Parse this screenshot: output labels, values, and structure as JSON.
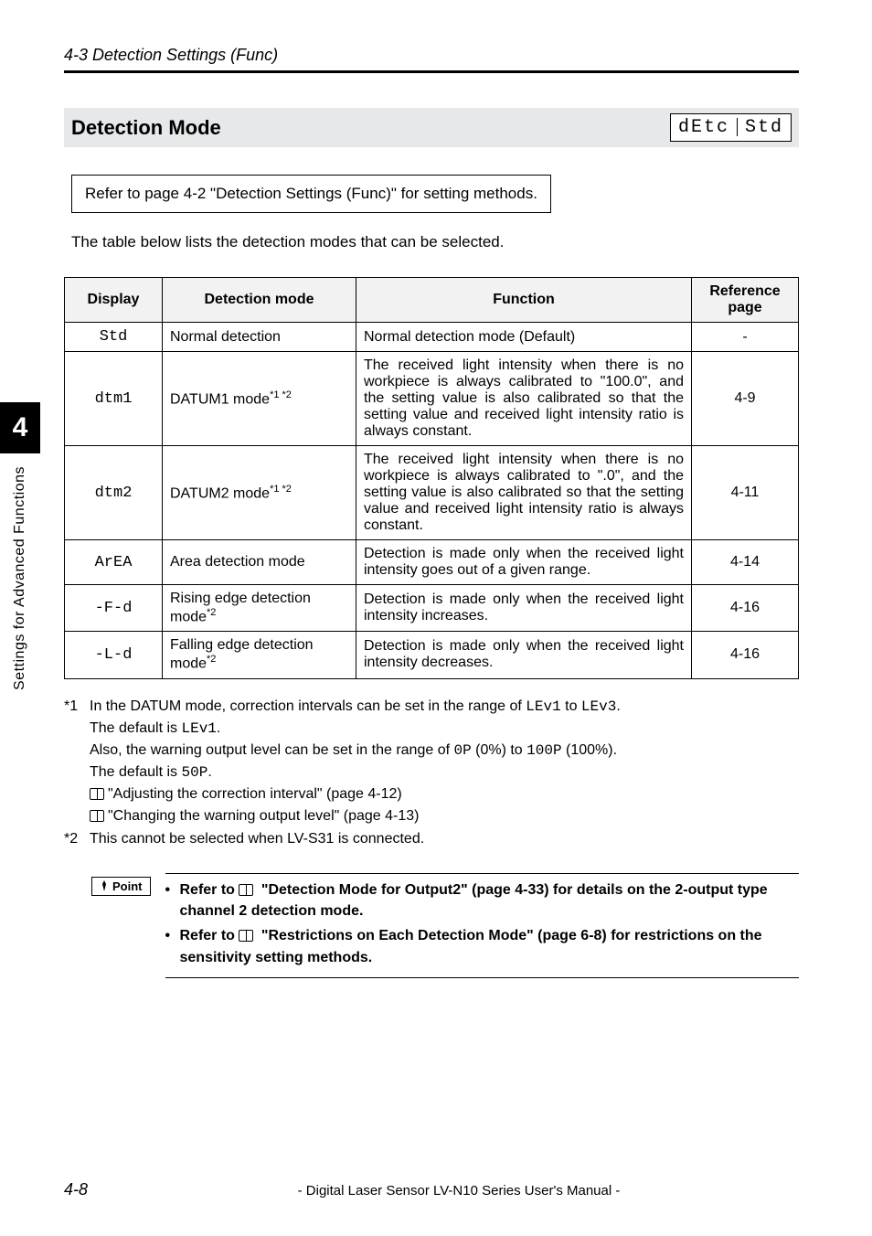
{
  "header": {
    "section": "4-3  Detection Settings (Func)"
  },
  "title": {
    "text": "Detection Mode",
    "seg_left": "dEtc",
    "seg_right": "Std"
  },
  "ref_box": "Refer to page 4-2 \"Detection Settings (Func)\" for setting methods.",
  "intro": "The table below lists the detection modes that can be selected.",
  "table": {
    "headers": {
      "display": "Display",
      "mode": "Detection mode",
      "func": "Function",
      "ref": "Reference page"
    },
    "rows": [
      {
        "display": "Std",
        "mode": "Normal detection",
        "mode_sup": "",
        "func": "Normal detection mode (Default)",
        "ref": "-"
      },
      {
        "display": "dtm1",
        "mode": "DATUM1 mode",
        "mode_sup": "*1 *2",
        "func": "The received light intensity when there is no workpiece is always calibrated to \"100.0\", and the setting value is also calibrated so that the setting value and received light intensity ratio is always constant.",
        "ref": "4-9"
      },
      {
        "display": "dtm2",
        "mode": "DATUM2 mode",
        "mode_sup": "*1 *2",
        "func": "The received light intensity when there is no workpiece is always calibrated to \".0\", and the setting value is also calibrated so that the setting value and received light intensity ratio is always constant.",
        "ref": "4-11"
      },
      {
        "display": "ArEA",
        "mode": "Area detection mode",
        "mode_sup": "",
        "func": "Detection is made only when the received light intensity goes out of a given range.",
        "ref": "4-14"
      },
      {
        "display": "-F-d",
        "mode": "Rising edge detection mode",
        "mode_sup": "*2",
        "func": "Detection is made only when the received light intensity increases.",
        "ref": "4-16"
      },
      {
        "display": "-L-d",
        "mode": "Falling edge detection mode",
        "mode_sup": "*2",
        "func": "Detection is made only when the received light intensity decreases.",
        "ref": "4-16"
      }
    ]
  },
  "footnotes": {
    "f1a": "In the DATUM mode, correction intervals can be set in the range of ",
    "f1a_code1": "LEv1",
    "f1a_mid": " to ",
    "f1a_code2": "LEv3",
    "f1a_end": ".",
    "f1b": "The default is ",
    "f1b_code": "LEv1",
    "f1b_end": ".",
    "f1c": "Also, the warning output level can be set in the range of ",
    "f1c_code1": "0P",
    "f1c_mid": " (0%) to ",
    "f1c_code2": "100P",
    "f1c_end": " (100%).",
    "f1d": "The default is ",
    "f1d_code": "50P",
    "f1d_end": ".",
    "f1e": "\"Adjusting the correction interval\" (page 4-12)",
    "f1f": "\"Changing the warning output level\" (page 4-13)",
    "f2": "This cannot be selected when LV-S31 is connected."
  },
  "point": {
    "label": "Point",
    "b1a": "Refer to ",
    "b1b": " \"Detection Mode for Output2\" (page 4-33) for details on the 2-output type channel 2 detection mode.",
    "b2a": "Refer to ",
    "b2b": " \"Restrictions on Each Detection Mode\" (page 6-8) for restrictions on the sensitivity setting methods."
  },
  "side": {
    "num": "4",
    "label": "Settings for Advanced Functions"
  },
  "footer": {
    "page": "4-8",
    "manual": "- Digital Laser Sensor LV-N10 Series User's Manual -"
  }
}
